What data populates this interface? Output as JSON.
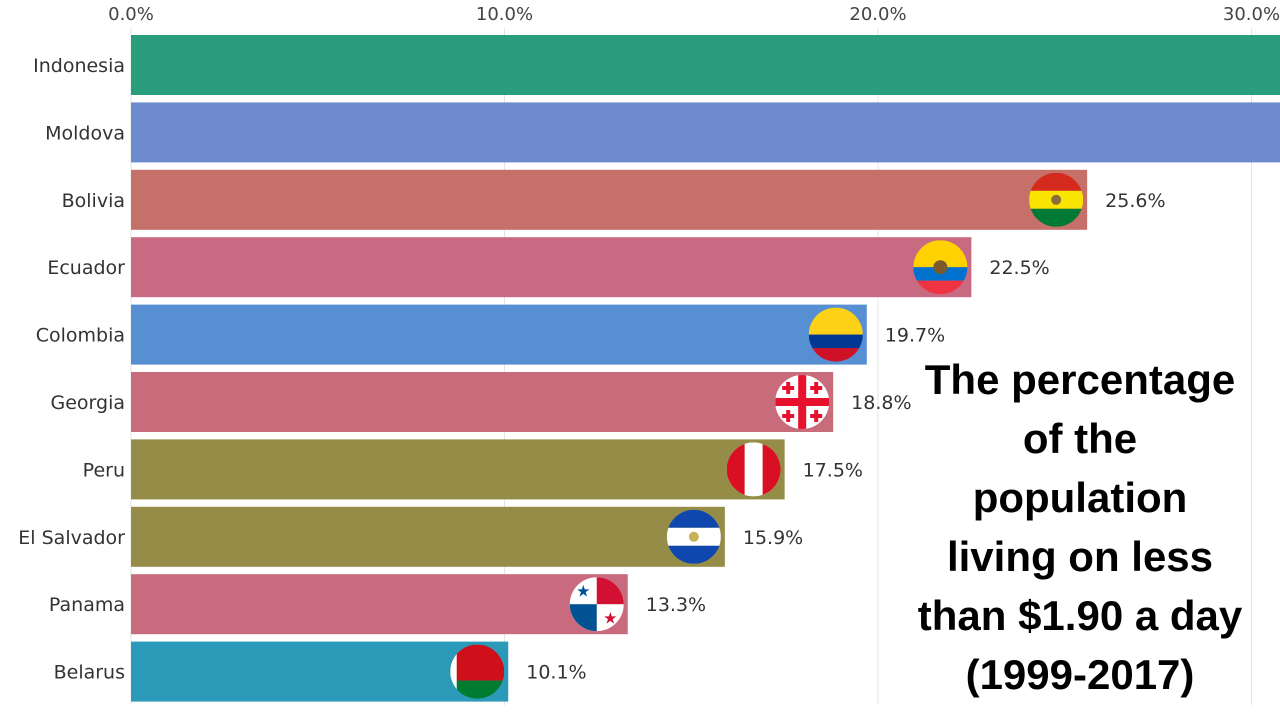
{
  "chart_data": {
    "type": "bar",
    "orientation": "horizontal",
    "title": "The percentage of the population living on less than $1.90 a day (1999-2017)",
    "title_lines": [
      "The percentage",
      "of the",
      "population",
      "living on less",
      "than $1.90 a day",
      "(1999-2017)"
    ],
    "xlabel": "",
    "ylabel": "",
    "xlim": [
      0,
      30.7
    ],
    "xticks": [
      0,
      10,
      20,
      30
    ],
    "xtick_labels": [
      "0.0%",
      "10.0%",
      "20.0%",
      "30.0%"
    ],
    "grid": true,
    "categories": [
      "Indonesia",
      "Moldova",
      "Bolivia",
      "Ecuador",
      "Colombia",
      "Georgia",
      "Peru",
      "El Salvador",
      "Panama",
      "Belarus"
    ],
    "values": [
      32.0,
      31.0,
      25.6,
      22.5,
      19.7,
      18.8,
      17.5,
      15.9,
      13.3,
      10.1
    ],
    "value_labels": [
      "",
      "",
      "25.6%",
      "22.5%",
      "19.7%",
      "18.8%",
      "17.5%",
      "15.9%",
      "13.3%",
      "10.1%"
    ],
    "colors": [
      "#2a9d7c",
      "#6e8bce",
      "#c6706a",
      "#c86b82",
      "#5790d2",
      "#c86b7a",
      "#958c48",
      "#958c48",
      "#c86b7e",
      "#2b9ab8"
    ],
    "flags": [
      "indonesia",
      "moldova",
      "bolivia",
      "ecuador",
      "colombia",
      "georgia",
      "peru",
      "el-salvador",
      "panama",
      "belarus"
    ]
  }
}
